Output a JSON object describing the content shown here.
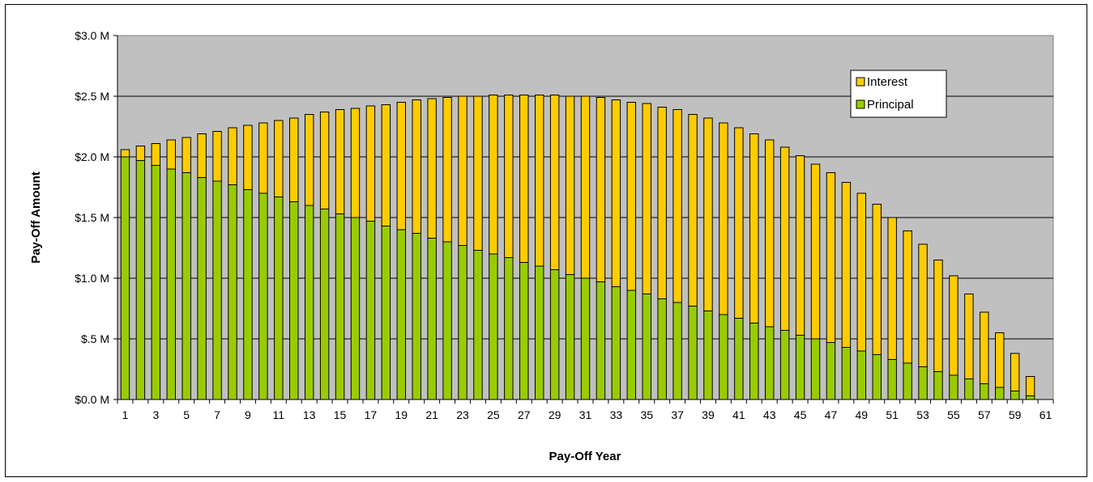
{
  "chart_data": {
    "type": "bar",
    "stacked": true,
    "title": "",
    "xlabel": "Pay-Off Year",
    "ylabel": "Pay-Off Amount",
    "ylim": [
      0,
      3.0
    ],
    "y_unit": "$ M",
    "y_ticks": [
      "$0.0 M",
      "$.5 M",
      "$1.0 M",
      "$1.5 M",
      "$2.0 M",
      "$2.5 M",
      "$3.0 M"
    ],
    "x_tick_labels": [
      "1",
      "3",
      "5",
      "7",
      "9",
      "11",
      "13",
      "15",
      "17",
      "19",
      "21",
      "23",
      "25",
      "27",
      "29",
      "31",
      "33",
      "35",
      "37",
      "39",
      "41",
      "43",
      "45",
      "47",
      "49",
      "51",
      "53",
      "55",
      "57",
      "59",
      "61"
    ],
    "categories": [
      1,
      2,
      3,
      4,
      5,
      6,
      7,
      8,
      9,
      10,
      11,
      12,
      13,
      14,
      15,
      16,
      17,
      18,
      19,
      20,
      21,
      22,
      23,
      24,
      25,
      26,
      27,
      28,
      29,
      30,
      31,
      32,
      33,
      34,
      35,
      36,
      37,
      38,
      39,
      40,
      41,
      42,
      43,
      44,
      45,
      46,
      47,
      48,
      49,
      50,
      51,
      52,
      53,
      54,
      55,
      56,
      57,
      58,
      59,
      60
    ],
    "grid": "horizontal",
    "legend_position": "top-right",
    "series": [
      {
        "name": "Principal",
        "color": "#99cc00",
        "values": [
          2.0,
          1.97,
          1.93,
          1.9,
          1.87,
          1.83,
          1.8,
          1.77,
          1.73,
          1.7,
          1.67,
          1.63,
          1.6,
          1.57,
          1.53,
          1.5,
          1.47,
          1.43,
          1.4,
          1.37,
          1.33,
          1.3,
          1.27,
          1.23,
          1.2,
          1.17,
          1.13,
          1.1,
          1.07,
          1.03,
          1.0,
          0.97,
          0.93,
          0.9,
          0.87,
          0.83,
          0.8,
          0.77,
          0.73,
          0.7,
          0.67,
          0.63,
          0.6,
          0.57,
          0.53,
          0.5,
          0.47,
          0.43,
          0.4,
          0.37,
          0.33,
          0.3,
          0.27,
          0.23,
          0.2,
          0.17,
          0.13,
          0.1,
          0.07,
          0.03
        ]
      },
      {
        "name": "Interest",
        "color": "#ffcc00",
        "values": [
          0.06,
          0.12,
          0.18,
          0.24,
          0.29,
          0.36,
          0.41,
          0.47,
          0.53,
          0.58,
          0.63,
          0.69,
          0.75,
          0.8,
          0.86,
          0.9,
          0.95,
          1.0,
          1.05,
          1.1,
          1.15,
          1.19,
          1.23,
          1.27,
          1.31,
          1.34,
          1.38,
          1.41,
          1.44,
          1.47,
          1.5,
          1.52,
          1.54,
          1.55,
          1.57,
          1.58,
          1.59,
          1.58,
          1.59,
          1.58,
          1.57,
          1.56,
          1.54,
          1.51,
          1.48,
          1.44,
          1.4,
          1.36,
          1.3,
          1.24,
          1.17,
          1.09,
          1.01,
          0.92,
          0.82,
          0.7,
          0.59,
          0.45,
          0.31,
          0.16
        ]
      }
    ]
  }
}
